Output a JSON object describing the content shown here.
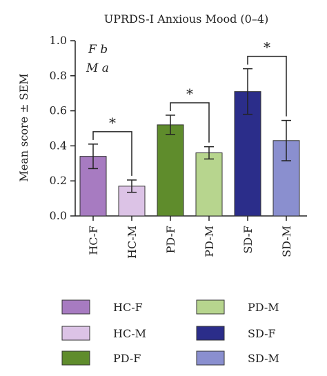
{
  "chart_data": {
    "type": "bar",
    "title": "UPRDS-I Anxious Mood (0–4)",
    "xlabel": "",
    "ylabel": "Mean score ± SEM",
    "ylim": [
      0,
      1.0
    ],
    "yticks": [
      "0.0",
      "0.2",
      "0.4",
      "0.6",
      "0.8",
      "1.0"
    ],
    "categories": [
      "HC-F",
      "HC-M",
      "PD-F",
      "PD-M",
      "SD-F",
      "SD-M"
    ],
    "values": [
      0.34,
      0.17,
      0.52,
      0.36,
      0.71,
      0.43
    ],
    "sem": [
      0.07,
      0.035,
      0.055,
      0.035,
      0.13,
      0.115
    ],
    "colors": [
      "#a77bc1",
      "#dcc3e6",
      "#5f8c2c",
      "#b7d58e",
      "#2b2d8a",
      "#8a8fcf"
    ],
    "annotations": [
      "F b",
      "M a"
    ],
    "significance": [
      {
        "pair": [
          0,
          1
        ],
        "label": "*"
      },
      {
        "pair": [
          2,
          3
        ],
        "label": "*"
      },
      {
        "pair": [
          4,
          5
        ],
        "label": "*"
      }
    ],
    "legend": {
      "position": "bottom",
      "entries": [
        "HC-F",
        "HC-M",
        "PD-F",
        "PD-M",
        "SD-F",
        "SD-M"
      ]
    },
    "grid": false
  }
}
